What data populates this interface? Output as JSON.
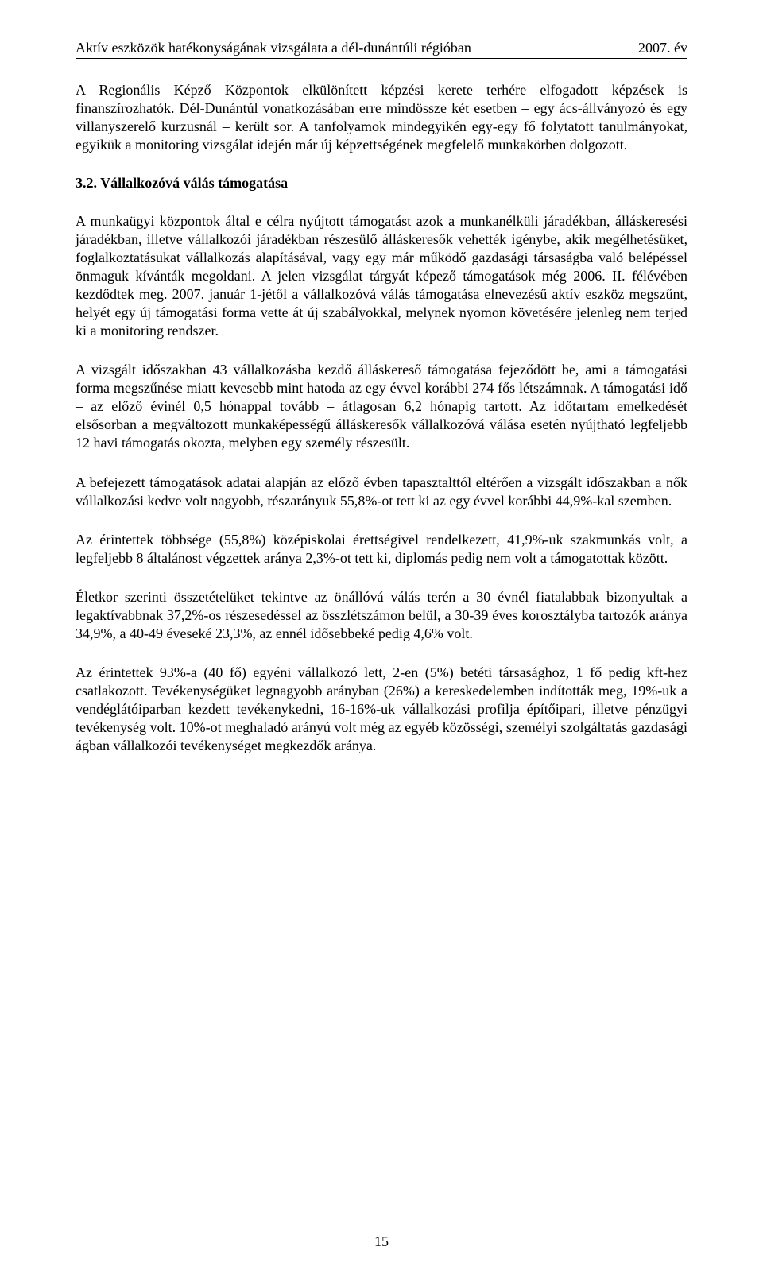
{
  "header": {
    "left": "Aktív eszközök hatékonyságának vizsgálata a dél-dunántúli régióban",
    "right": "2007. év"
  },
  "paragraphs": {
    "p1": "A Regionális Képző Központok elkülönített képzési kerete terhére elfogadott képzések is finanszírozhatók. Dél-Dunántúl vonatkozásában erre mindössze két esetben – egy ács-állványozó és egy villanyszerelő kurzusnál – került sor. A tanfolyamok mindegyikén egy-egy fő folytatott tanulmányokat, egyikük a monitoring vizsgálat idején már új képzettségének megfelelő munkakörben dolgozott.",
    "heading": "3.2. Vállalkozóvá válás támogatása",
    "p2": "A munkaügyi központok által e célra nyújtott támogatást azok a munkanélküli járadékban, álláskeresési járadékban, illetve vállalkozói járadékban részesülő álláskeresők vehették igénybe, akik megélhetésüket, foglalkoztatásukat vállalkozás alapításával, vagy egy már működő gazdasági társaságba való belépéssel önmaguk kívánták megoldani. A jelen vizsgálat tárgyát képező támogatások még 2006. II. félévében kezdődtek meg. 2007. január 1-jétől a vállalkozóvá válás támogatása elnevezésű aktív eszköz megszűnt, helyét egy új támogatási forma vette át új szabályokkal, melynek nyomon követésére jelenleg nem terjed ki a monitoring rendszer.",
    "p3": "A vizsgált időszakban 43 vállalkozásba kezdő álláskereső támogatása fejeződött be, ami a támogatási forma megszűnése miatt kevesebb mint hatoda az egy évvel korábbi 274 fős létszámnak. A támogatási idő – az előző évinél 0,5 hónappal tovább – átlagosan 6,2 hónapig tartott. Az időtartam emelkedését elsősorban a megváltozott munkaképességű álláskeresők vállalkozóvá válása esetén nyújtható legfeljebb 12 havi támogatás okozta, melyben egy személy részesült.",
    "p4": "A befejezett támogatások adatai alapján az előző évben tapasztalttól eltérően a vizsgált időszakban a nők vállalkozási kedve volt nagyobb, részarányuk 55,8%-ot tett ki az egy évvel korábbi 44,9%-kal szemben.",
    "p5": "Az érintettek többsége (55,8%) középiskolai érettségivel rendelkezett, 41,9%-uk szakmunkás volt, a legfeljebb 8 általánost végzettek aránya 2,3%-ot tett ki, diplomás pedig nem volt a támogatottak között.",
    "p6": "Életkor szerinti összetételüket tekintve az önállóvá válás terén a 30 évnél fiatalabbak bizonyultak a legaktívabbnak 37,2%-os részesedéssel az összlétszámon belül, a 30-39 éves korosztályba tartozók aránya 34,9%, a 40-49 éveseké 23,3%, az ennél idősebbeké pedig 4,6% volt.",
    "p7": "Az érintettek 93%-a (40 fő) egyéni vállalkozó lett, 2-en (5%) betéti társasághoz, 1 fő pedig kft-hez csatlakozott. Tevékenységüket legnagyobb arányban (26%) a kereskedelemben indították meg, 19%-uk a vendéglátóiparban kezdett tevékenykedni, 16-16%-uk vállalkozási profilja építőipari, illetve pénzügyi tevékenység volt. 10%-ot meghaladó arányú volt még az egyéb közösségi, személyi szolgáltatás gazdasági ágban vállalkozói tevékenységet megkezdők aránya."
  },
  "pageNumber": "15",
  "style": {
    "fontFamily": "Times New Roman",
    "fontSizePt": 12,
    "textColor": "#000000",
    "backgroundColor": "#ffffff",
    "underlineColor": "#000000",
    "pageWidthPx": 960,
    "pageHeightPx": 1613,
    "align": "justify"
  }
}
